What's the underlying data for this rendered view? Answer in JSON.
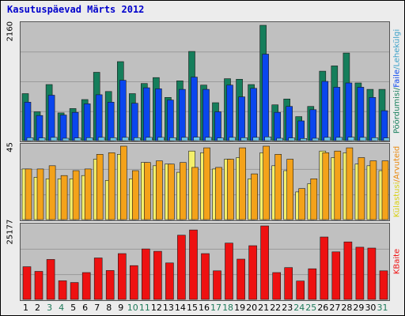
{
  "title": "Kasutuspäevad Märts 2012",
  "colors": {
    "pages": "#157e5b",
    "files": "#0a46ee",
    "hits": "#70c8e8",
    "visits": "#f4a21a",
    "sites": "#f4f06a",
    "kbytes": "#ee1111",
    "weekday_label": "#000000",
    "weekend_label": "#1f7a5a"
  },
  "chart_data": [
    {
      "type": "bar",
      "ymax_label": "2160",
      "ylim": [
        0,
        2160
      ],
      "grid": true,
      "categories": [
        "1",
        "2",
        "3",
        "4",
        "5",
        "6",
        "7",
        "8",
        "9",
        "10",
        "11",
        "12",
        "13",
        "14",
        "15",
        "16",
        "17",
        "18",
        "19",
        "20",
        "21",
        "22",
        "23",
        "24",
        "25",
        "26",
        "27",
        "28",
        "29",
        "30",
        "31"
      ],
      "right_label": [
        "Pöördumisi",
        "/",
        "Faile",
        "/",
        "Lehekülgi"
      ],
      "series": [
        {
          "name": "Pöördumisi",
          "values": [
            880,
            540,
            1050,
            520,
            600,
            770,
            1280,
            920,
            1480,
            880,
            1070,
            1180,
            810,
            1120,
            1670,
            1040,
            710,
            1160,
            1150,
            1050,
            2160,
            670,
            780,
            450,
            640,
            1300,
            1400,
            1640,
            1080,
            960,
            960
          ]
        },
        {
          "name": "Faile",
          "values": [
            720,
            470,
            850,
            480,
            530,
            690,
            860,
            720,
            1130,
            700,
            990,
            970,
            760,
            960,
            1190,
            960,
            540,
            1040,
            820,
            980,
            1620,
            530,
            640,
            370,
            580,
            1110,
            1000,
            1080,
            1000,
            810,
            560
          ]
        },
        {
          "name": "Lehekülgi",
          "values": [
            55,
            50,
            60,
            45,
            50,
            55,
            60,
            55,
            60,
            55,
            60,
            60,
            55,
            60,
            65,
            60,
            50,
            60,
            55,
            60,
            70,
            45,
            50,
            40,
            45,
            60,
            60,
            65,
            60,
            55,
            50
          ]
        }
      ]
    },
    {
      "type": "bar",
      "ymax_label": "45",
      "ylim": [
        0,
        45
      ],
      "grid": true,
      "categories": [
        "1",
        "2",
        "3",
        "4",
        "5",
        "6",
        "7",
        "8",
        "9",
        "10",
        "11",
        "12",
        "13",
        "14",
        "15",
        "16",
        "17",
        "18",
        "19",
        "20",
        "21",
        "22",
        "23",
        "24",
        "25",
        "26",
        "27",
        "28",
        "29",
        "30",
        "31"
      ],
      "right_label": [
        "Külastusi",
        "/",
        "Arvuteid"
      ],
      "series": [
        {
          "name": "Külastusi",
          "values": [
            31,
            31,
            33,
            27,
            30,
            31,
            40,
            41,
            45,
            30,
            35,
            36,
            34,
            35,
            32,
            44,
            32,
            37,
            44,
            28,
            45,
            40,
            37,
            19,
            25,
            41,
            42,
            44,
            38,
            36,
            36
          ]
        },
        {
          "name": "Arvuteid",
          "values": [
            31,
            26,
            25,
            25,
            25,
            27,
            37,
            24,
            40,
            25,
            35,
            33,
            34,
            29,
            42,
            41,
            31,
            37,
            38,
            25,
            41,
            33,
            30,
            17,
            22,
            42,
            38,
            41,
            34,
            33,
            30
          ]
        }
      ]
    },
    {
      "type": "bar",
      "ymax_label": "25177",
      "ylim": [
        0,
        25177
      ],
      "grid": true,
      "categories": [
        "1",
        "2",
        "3",
        "4",
        "5",
        "6",
        "7",
        "8",
        "9",
        "10",
        "11",
        "12",
        "13",
        "14",
        "15",
        "16",
        "17",
        "18",
        "19",
        "20",
        "21",
        "22",
        "23",
        "24",
        "25",
        "26",
        "27",
        "28",
        "29",
        "30",
        "31"
      ],
      "right_label": [
        "KBaite"
      ],
      "series": [
        {
          "name": "KBaite",
          "values": [
            11200,
            9600,
            13700,
            6400,
            5800,
            9200,
            14200,
            9900,
            15700,
            11600,
            17300,
            16500,
            12500,
            22000,
            23800,
            15700,
            9800,
            19300,
            13800,
            18400,
            25177,
            9200,
            10900,
            6300,
            10500,
            21400,
            16300,
            19700,
            17900,
            17600,
            9800
          ]
        }
      ]
    }
  ],
  "weekend_days": [
    3,
    4,
    10,
    11,
    17,
    18,
    24,
    25,
    31
  ]
}
